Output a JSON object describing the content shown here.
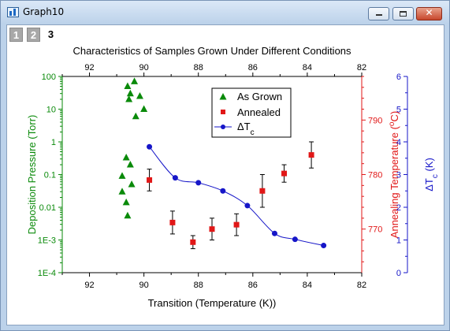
{
  "window": {
    "title": "Graph10",
    "buttons": {
      "minimize": "minimize-icon",
      "maximize": "maximize-icon",
      "close": "close-icon"
    },
    "close_glyph": "✕"
  },
  "layers": {
    "tabs": [
      "1",
      "2",
      "3"
    ],
    "active": 2
  },
  "colors": {
    "left_axis": "#0a8a0a",
    "right_axis": "#e11717",
    "far_right_axis": "#1616c8",
    "plot_border": "#000000"
  },
  "chart_data": {
    "type": "scatter",
    "title": "Characteristics of Samples Grown Under Different Conditions",
    "xlabel": "Transition (Temperature (K))",
    "x_reversed": true,
    "xlim": [
      93,
      82
    ],
    "x_ticks": [
      "92",
      "90",
      "88",
      "86",
      "84",
      "82"
    ],
    "top_x_ticks": [
      "92",
      "90",
      "88",
      "86",
      "84",
      "82"
    ],
    "left_axis": {
      "label": "Deposition Pressure (Torr)",
      "scale": "log",
      "ylim": [
        0.0001,
        100
      ],
      "ticks": [
        "100",
        "10",
        "1",
        "0.1",
        "0.01",
        "1E-3",
        "1E-4"
      ]
    },
    "right_axis": {
      "label": "Annealing Temperature (°C)",
      "label_parts": [
        "Annealing Temperature (",
        "o",
        "C)"
      ],
      "ylim": [
        762,
        798
      ],
      "ticks": [
        "790",
        "780",
        "770"
      ]
    },
    "far_right_axis": {
      "label": "ΔTc (K)",
      "label_parts": [
        "ΔT",
        "c",
        " (K)"
      ],
      "ylim": [
        0,
        6
      ],
      "ticks": [
        "0",
        "1",
        "2",
        "3",
        "4",
        "5",
        "6"
      ]
    },
    "legend": {
      "position": "top-right",
      "entries": [
        "As Grown",
        "Annealed",
        "ΔTc"
      ],
      "entry_parts": [
        [
          "As Grown",
          ""
        ],
        [
          "Annealed",
          ""
        ],
        [
          "ΔT",
          "c"
        ]
      ]
    },
    "series": [
      {
        "name": "As Grown",
        "axis": "left",
        "marker": "triangle",
        "color": "#0a8a0a",
        "points": [
          [
            90.6,
            50
          ],
          [
            90.35,
            70
          ],
          [
            90.5,
            30
          ],
          [
            90.55,
            20
          ],
          [
            90.15,
            25
          ],
          [
            90.0,
            10
          ],
          [
            90.3,
            6
          ],
          [
            90.65,
            0.33
          ],
          [
            90.8,
            0.09
          ],
          [
            90.5,
            0.2
          ],
          [
            90.45,
            0.05
          ],
          [
            90.8,
            0.03
          ],
          [
            90.65,
            0.014
          ],
          [
            90.6,
            0.0055
          ]
        ]
      },
      {
        "name": "Annealed",
        "axis": "right",
        "marker": "square",
        "color": "#e11717",
        "points": [
          {
            "x": 89.8,
            "y": 779.0,
            "err": 2.0
          },
          {
            "x": 88.95,
            "y": 771.2,
            "err": 2.1
          },
          {
            "x": 88.2,
            "y": 767.6,
            "err": 1.2
          },
          {
            "x": 87.5,
            "y": 770.0,
            "err": 2.0
          },
          {
            "x": 86.6,
            "y": 770.8,
            "err": 2.0
          },
          {
            "x": 85.65,
            "y": 777.0,
            "err": 3.0
          },
          {
            "x": 84.85,
            "y": 780.2,
            "err": 1.6
          },
          {
            "x": 83.85,
            "y": 783.6,
            "err": 2.4
          }
        ]
      },
      {
        "name": "ΔTc",
        "axis": "far_right",
        "marker": "circle",
        "color": "#1616c8",
        "line": "smooth",
        "points": [
          [
            89.8,
            3.85
          ],
          [
            88.85,
            2.9
          ],
          [
            88.0,
            2.75
          ],
          [
            87.1,
            2.5
          ],
          [
            86.2,
            2.05
          ],
          [
            85.2,
            1.2
          ],
          [
            84.45,
            1.02
          ],
          [
            83.4,
            0.83
          ]
        ]
      }
    ]
  }
}
